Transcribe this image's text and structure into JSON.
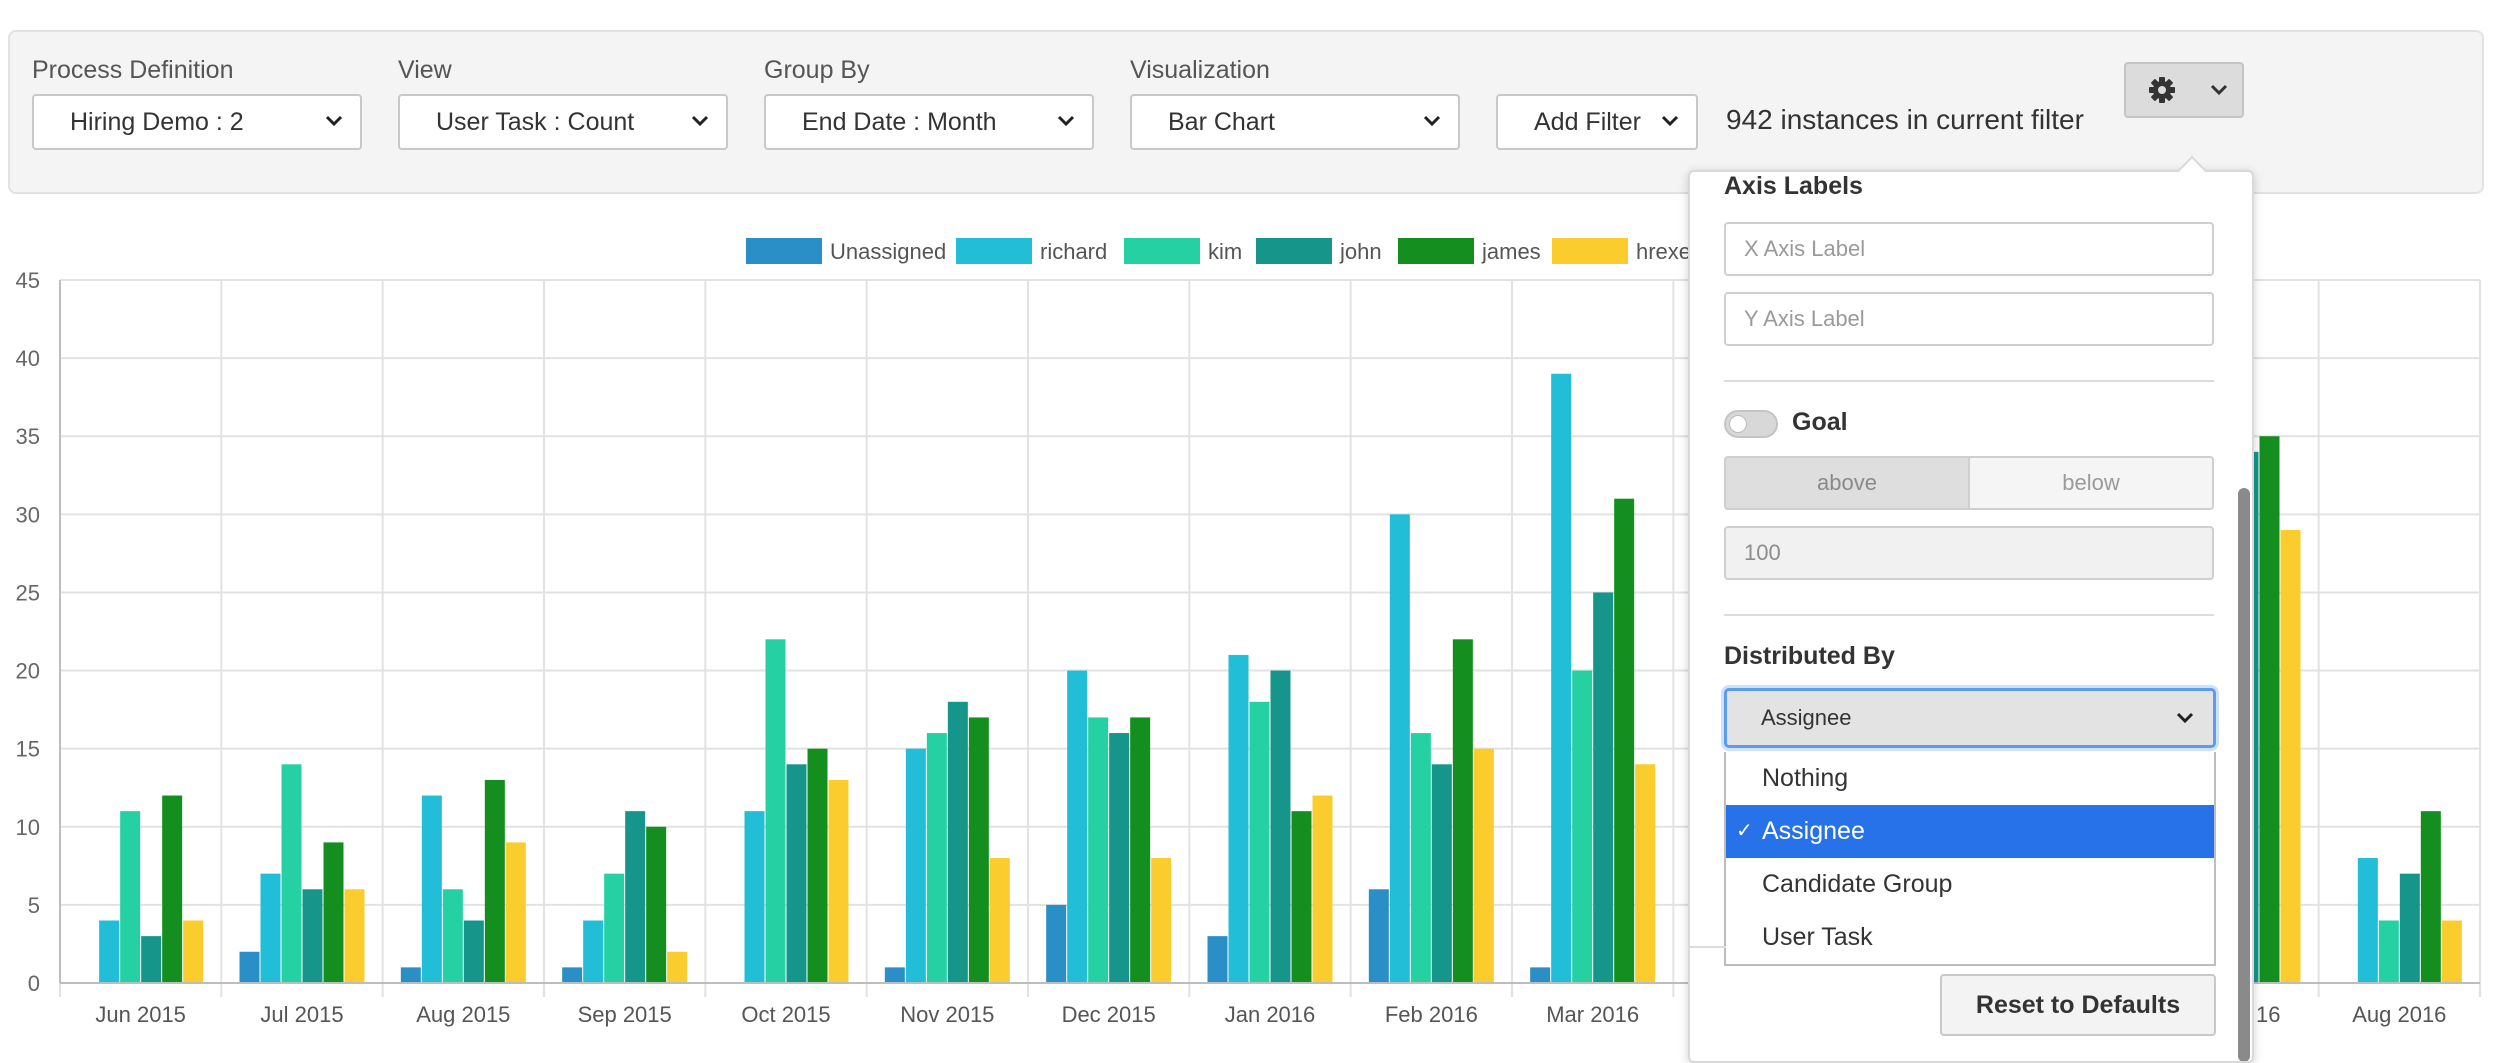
{
  "controls": {
    "process_definition": {
      "label": "Process Definition",
      "value": "Hiring Demo : 2"
    },
    "view": {
      "label": "View",
      "value": "User Task : Count"
    },
    "group_by": {
      "label": "Group By",
      "value": "End Date : Month"
    },
    "visualization": {
      "label": "Visualization",
      "value": "Bar Chart"
    },
    "add_filter": "Add Filter",
    "instances_text": "942 instances in current filter",
    "settings_icon": "gear-icon"
  },
  "popover": {
    "axis_labels_heading": "Axis Labels",
    "x_axis_placeholder": "X Axis Label",
    "y_axis_placeholder": "Y Axis Label",
    "goal_label": "Goal",
    "goal_enabled": false,
    "goal_above": "above",
    "goal_below": "below",
    "goal_value_placeholder": "100",
    "distributed_by_heading": "Distributed By",
    "distributed_by_value": "Assignee",
    "options": [
      "Nothing",
      "Assignee",
      "Candidate Group",
      "User Task"
    ],
    "selected_option": "Assignee",
    "reset_button": "Reset to Defaults"
  },
  "colors": {
    "accent": "#2772e8",
    "Unassigned": "#2a8fc7",
    "richard": "#22bdd6",
    "kim": "#25d1a3",
    "john": "#16968a",
    "james": "#148f1f",
    "hrexecutive": "#fbcc2e"
  },
  "chart_data": {
    "type": "bar",
    "categories": [
      "Jun 2015",
      "Jul 2015",
      "Aug 2015",
      "Sep 2015",
      "Oct 2015",
      "Nov 2015",
      "Dec 2015",
      "Jan 2016",
      "Feb 2016",
      "Mar 2016",
      "",
      "",
      "",
      "",
      "Aug 2016"
    ],
    "visible_tick_fragment": "16",
    "ylim": [
      0,
      45
    ],
    "yticks": [
      0,
      5,
      10,
      15,
      20,
      25,
      30,
      35,
      40,
      45
    ],
    "legend_visible_text": [
      "Unassigned",
      "richard",
      "kim",
      "john",
      "james",
      "hrexe"
    ],
    "legend_position": "top",
    "grid": true,
    "series": [
      {
        "name": "Unassigned",
        "values": [
          0,
          2,
          1,
          1,
          0,
          1,
          5,
          3,
          6,
          1,
          null,
          null,
          null,
          null,
          0
        ]
      },
      {
        "name": "richard",
        "values": [
          4,
          7,
          12,
          4,
          11,
          15,
          20,
          21,
          30,
          39,
          null,
          null,
          null,
          null,
          8
        ]
      },
      {
        "name": "kim",
        "values": [
          11,
          14,
          6,
          7,
          22,
          16,
          17,
          18,
          16,
          20,
          null,
          null,
          null,
          null,
          4
        ]
      },
      {
        "name": "john",
        "values": [
          3,
          6,
          4,
          11,
          14,
          18,
          16,
          20,
          14,
          25,
          null,
          null,
          null,
          34,
          7
        ]
      },
      {
        "name": "james",
        "values": [
          12,
          9,
          13,
          10,
          15,
          17,
          17,
          11,
          22,
          31,
          null,
          null,
          null,
          35,
          11
        ]
      },
      {
        "name": "hrexe",
        "values": [
          4,
          6,
          9,
          2,
          13,
          8,
          8,
          12,
          15,
          14,
          null,
          null,
          null,
          29,
          4
        ]
      }
    ]
  }
}
